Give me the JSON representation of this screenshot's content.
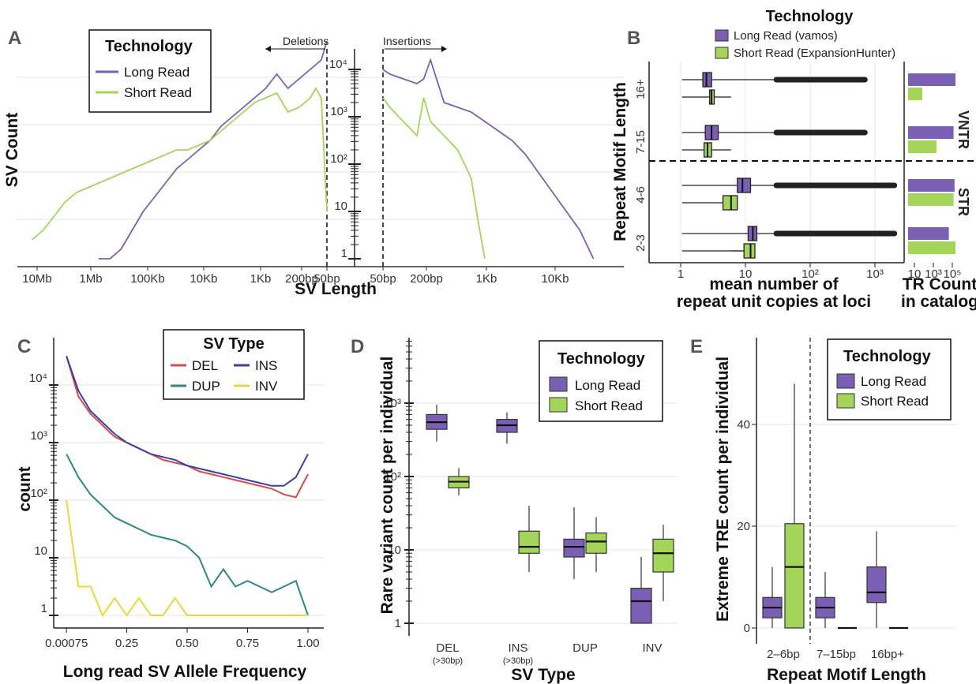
{
  "panels": {
    "A": {
      "label": "A",
      "ylabel": "SV Count",
      "xlabel": "SV Length",
      "del_label": "Deletions",
      "ins_label": "Insertions",
      "legend": {
        "title": "Technology",
        "items": [
          "Long Read",
          "Short Read"
        ]
      },
      "yticks": [
        "1",
        "10",
        "10²",
        "10³",
        "10⁴"
      ],
      "xticks_del": [
        "10Mb",
        "1Mb",
        "100Kb",
        "10Kb",
        "1Kb",
        "200bp",
        "50bp"
      ],
      "xticks_ins": [
        "50bp",
        "200bp",
        "1Kb",
        "10Kb"
      ]
    },
    "B": {
      "label": "B",
      "ylabel": "Repeat Motif Length",
      "xlabel_line1": "mean number of",
      "xlabel_line2": "repeat unit copies at loci",
      "xlabel2_line1": "TR Count",
      "xlabel2_line2": "in catalog",
      "legend": {
        "title": "Technology",
        "items": [
          "Long Read (vamos)",
          "Short Read (ExpansionHunter)"
        ]
      },
      "categories": [
        "16+",
        "7-15",
        "4-6",
        "2-3"
      ],
      "groups": [
        "VNTR",
        "STR"
      ],
      "xticks": [
        "1",
        "10",
        "10²",
        "10³"
      ],
      "xticks2": [
        "10",
        "10³",
        "10⁵"
      ]
    },
    "C": {
      "label": "C",
      "ylabel": "count",
      "xlabel": "Long read SV Allele Frequency",
      "legend": {
        "title": "SV Type",
        "items": [
          "DEL",
          "INS",
          "DUP",
          "INV"
        ]
      },
      "yticks": [
        "1",
        "10",
        "10²",
        "10³",
        "10⁴"
      ],
      "xticks": [
        "0.00075",
        "0.25",
        "0.50",
        "0.75",
        "1.00"
      ]
    },
    "D": {
      "label": "D",
      "ylabel": "Rare variant count per individual",
      "xlabel": "SV Type",
      "legend": {
        "title": "Technology",
        "items": [
          "Long Read",
          "Short Read"
        ]
      },
      "categories": [
        "DEL",
        "INS",
        "DUP",
        "INV"
      ],
      "sublabels": [
        "(>30bp)",
        "(>30bp)",
        "",
        ""
      ],
      "yticks": [
        "1",
        "10",
        "10²",
        "10³"
      ]
    },
    "E": {
      "label": "E",
      "ylabel": "Extreme TRE count per individual",
      "xlabel": "Repeat Motif Length",
      "legend": {
        "title": "Technology",
        "items": [
          "Long Read",
          "Short Read"
        ]
      },
      "categories": [
        "2–6bp",
        "7–15bp",
        "16bp+"
      ],
      "yticks": [
        "0",
        "20",
        "40"
      ]
    }
  },
  "colors": {
    "long": "#7a5fb4",
    "short": "#a3d55a",
    "del": "#d94a4a",
    "ins": "#3a3fa8",
    "dup": "#2a8a7e",
    "inv": "#e7d83c"
  },
  "chart_data": [
    {
      "type": "line",
      "panel": "A-deletions",
      "x_ticks": [
        "10Mb",
        "1Mb",
        "100Kb",
        "10Kb",
        "1Kb",
        "200bp",
        "50bp"
      ],
      "y_scale": "log10",
      "series": [
        {
          "name": "Long Read",
          "x_log10_bp": [
            5.8,
            5.6,
            5.4,
            5.2,
            5.0,
            4.8,
            4.6,
            4.4,
            4.2,
            4.0,
            3.8,
            3.6,
            3.4,
            3.2,
            3.0,
            2.8,
            2.6,
            2.4,
            2.2,
            2.0,
            1.8,
            1.7
          ],
          "y_log10": [
            0.0,
            0.0,
            0.2,
            0.6,
            1.0,
            1.3,
            1.6,
            1.9,
            2.1,
            2.3,
            2.5,
            2.8,
            3.0,
            3.2,
            3.4,
            3.6,
            3.9,
            3.6,
            3.8,
            4.0,
            4.2,
            4.6
          ]
        },
        {
          "name": "Short Read",
          "x_log10_bp": [
            7.0,
            6.8,
            6.6,
            6.4,
            6.2,
            6.0,
            5.8,
            5.6,
            5.4,
            5.2,
            5.0,
            4.8,
            4.6,
            4.4,
            4.2,
            4.0,
            3.8,
            3.6,
            3.4,
            3.2,
            3.0,
            2.8,
            2.6,
            2.4,
            2.2,
            2.0,
            1.9,
            1.8,
            1.7
          ],
          "y_log10": [
            0.4,
            0.6,
            0.9,
            1.2,
            1.4,
            1.5,
            1.6,
            1.7,
            1.8,
            1.9,
            2.0,
            2.1,
            2.2,
            2.3,
            2.3,
            2.4,
            2.5,
            2.7,
            2.9,
            3.1,
            3.3,
            3.4,
            3.5,
            3.1,
            3.2,
            3.4,
            3.6,
            3.4,
            1.0
          ]
        }
      ]
    },
    {
      "type": "line",
      "panel": "A-insertions",
      "x_ticks": [
        "50bp",
        "200bp",
        "1Kb",
        "10Kb"
      ],
      "y_scale": "log10",
      "series": [
        {
          "name": "Long Read",
          "x_log10_bp": [
            1.7,
            1.8,
            2.0,
            2.2,
            2.3,
            2.4,
            2.6,
            2.8,
            3.0,
            3.2,
            3.4,
            3.6,
            3.8,
            4.0,
            4.2,
            4.4,
            4.6,
            4.8
          ],
          "y_log10": [
            4.0,
            3.9,
            3.8,
            3.7,
            3.8,
            4.2,
            3.3,
            3.2,
            3.1,
            2.9,
            2.7,
            2.5,
            2.2,
            1.8,
            1.4,
            1.0,
            0.6,
            0.0
          ]
        },
        {
          "name": "Short Read",
          "x_log10_bp": [
            1.7,
            1.8,
            2.0,
            2.2,
            2.3,
            2.4,
            2.6,
            2.8,
            3.0,
            3.1,
            3.2
          ],
          "y_log10": [
            3.4,
            3.2,
            2.9,
            2.6,
            3.4,
            2.9,
            2.6,
            2.3,
            1.7,
            0.8,
            0.0
          ]
        }
      ]
    },
    {
      "type": "boxplot",
      "panel": "B",
      "x_scale": "log10",
      "categories": [
        "16+",
        "7-15",
        "4-6",
        "2-3"
      ],
      "series": [
        {
          "name": "Long Read (vamos)",
          "median": [
            2.5,
            3.0,
            9.0,
            13.0
          ],
          "q1": [
            2.2,
            2.4,
            7.5,
            11.0
          ],
          "q3": [
            3.0,
            3.8,
            12.0,
            15.0
          ]
        },
        {
          "name": "Short Read (ExpansionHunter)",
          "median": [
            3.0,
            2.6,
            6.0,
            12.0
          ],
          "q1": [
            2.8,
            2.3,
            4.5,
            9.5
          ],
          "q3": [
            3.3,
            3.0,
            7.5,
            14.0
          ]
        }
      ],
      "tr_count_log10": {
        "Long Read (vamos)": [
          5.0,
          4.8,
          4.9,
          4.3
        ],
        "Short Read (ExpansionHunter)": [
          1.5,
          3.0,
          4.8,
          5.0
        ]
      }
    },
    {
      "type": "line",
      "panel": "C",
      "x": [
        0.00075,
        0.05,
        0.1,
        0.15,
        0.2,
        0.25,
        0.3,
        0.35,
        0.4,
        0.45,
        0.5,
        0.55,
        0.6,
        0.65,
        0.7,
        0.75,
        0.8,
        0.85,
        0.9,
        0.95,
        1.0
      ],
      "y_scale": "log10",
      "series": [
        {
          "name": "DEL",
          "y_log10": [
            4.5,
            3.8,
            3.5,
            3.3,
            3.1,
            3.0,
            2.9,
            2.8,
            2.7,
            2.65,
            2.6,
            2.5,
            2.45,
            2.4,
            2.35,
            2.3,
            2.25,
            2.2,
            2.1,
            2.05,
            2.45
          ]
        },
        {
          "name": "INS",
          "y_log10": [
            4.5,
            3.9,
            3.55,
            3.35,
            3.15,
            3.0,
            2.9,
            2.8,
            2.75,
            2.7,
            2.6,
            2.55,
            2.5,
            2.45,
            2.4,
            2.35,
            2.3,
            2.25,
            2.25,
            2.4,
            2.8
          ]
        },
        {
          "name": "DUP",
          "y_log10": [
            2.8,
            2.4,
            2.1,
            1.9,
            1.7,
            1.6,
            1.5,
            1.4,
            1.35,
            1.3,
            1.2,
            1.0,
            0.5,
            0.8,
            0.5,
            0.6,
            0.5,
            0.4,
            0.5,
            0.6,
            0.0
          ]
        },
        {
          "name": "INV",
          "y_log10": [
            2.0,
            0.5,
            0.5,
            0.0,
            0.3,
            0.0,
            0.3,
            0.0,
            0.0,
            0.3,
            0.0,
            0.0,
            0.0,
            0.0,
            0.0,
            0.0,
            0.0,
            0.0,
            0.0,
            0.0,
            0.0
          ]
        }
      ]
    },
    {
      "type": "boxplot",
      "panel": "D",
      "y_scale": "log10",
      "categories": [
        "DEL",
        "INS",
        "DUP",
        "INV"
      ],
      "series": [
        {
          "name": "Long Read",
          "median": [
            550,
            500,
            11,
            2
          ],
          "q1": [
            440,
            400,
            8,
            1
          ],
          "q3": [
            700,
            600,
            14,
            3
          ],
          "whisker_low": [
            300,
            280,
            4,
            1
          ],
          "whisker_high": [
            950,
            750,
            38,
            8
          ]
        },
        {
          "name": "Short Read",
          "median": [
            85,
            11,
            13,
            9
          ],
          "q1": [
            70,
            9,
            9,
            5
          ],
          "q3": [
            100,
            18,
            17,
            14
          ],
          "whisker_low": [
            55,
            5,
            5,
            2
          ],
          "whisker_high": [
            130,
            40,
            28,
            22
          ]
        }
      ]
    },
    {
      "type": "boxplot",
      "panel": "E",
      "categories": [
        "2–6bp",
        "7–15bp",
        "16bp+"
      ],
      "ylim": [
        0,
        60
      ],
      "series": [
        {
          "name": "Long Read",
          "median": [
            4,
            4,
            7
          ],
          "q1": [
            2,
            2,
            5
          ],
          "q3": [
            6,
            6,
            12
          ],
          "whisker_low": [
            0,
            0,
            0
          ],
          "whisker_high": [
            12,
            11,
            19
          ]
        },
        {
          "name": "Short Read",
          "median": [
            12,
            0,
            0
          ],
          "q1": [
            0,
            0,
            0
          ],
          "q3": [
            20.5,
            0,
            0
          ],
          "whisker_low": [
            0,
            0,
            0
          ],
          "whisker_high": [
            48,
            0,
            0
          ]
        }
      ]
    }
  ]
}
